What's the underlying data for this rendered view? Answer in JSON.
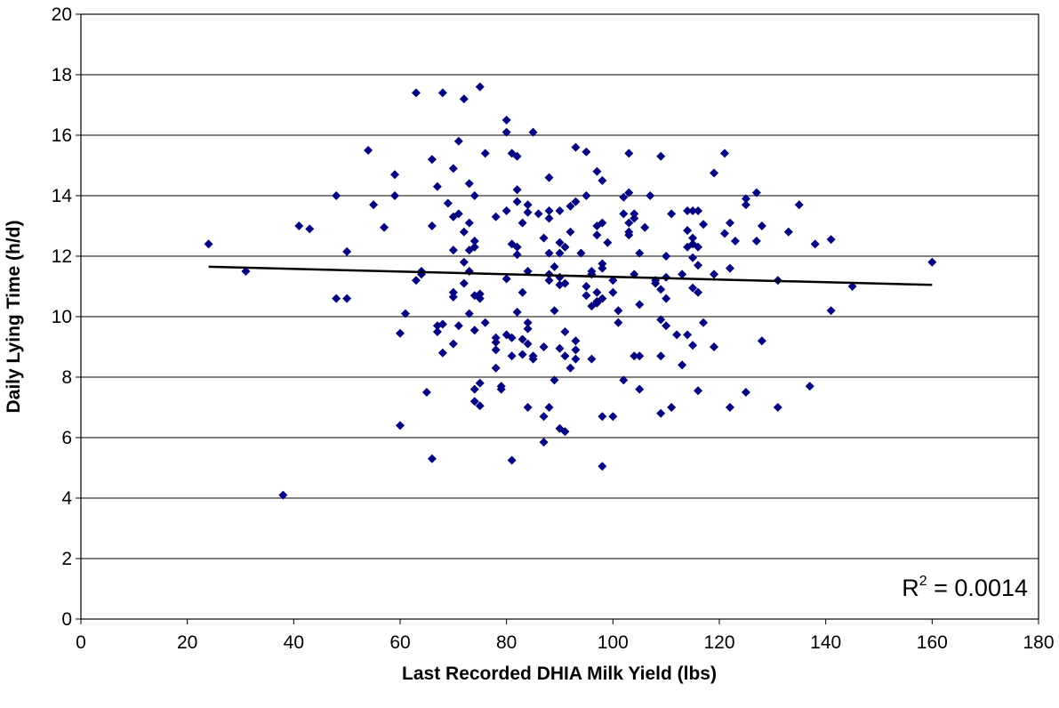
{
  "chart_data": {
    "type": "scatter",
    "title": "",
    "xlabel": "Last Recorded DHIA Milk Yield (lbs)",
    "ylabel": "Daily Lying Time (h/d)",
    "xlim": [
      0,
      180
    ],
    "ylim": [
      0,
      20
    ],
    "x_ticks": [
      0,
      20,
      40,
      60,
      80,
      100,
      120,
      140,
      160,
      180
    ],
    "y_ticks": [
      0,
      2,
      4,
      6,
      8,
      10,
      12,
      14,
      16,
      18,
      20
    ],
    "grid": "horizontal",
    "legend": "none",
    "r_squared_label": "R",
    "r_squared_exp": "2",
    "r_squared_value": " = 0.0014",
    "point_color": "#000080",
    "trendline": {
      "x": [
        24,
        160
      ],
      "y": [
        11.65,
        11.05
      ]
    },
    "points": [
      [
        24,
        12.4
      ],
      [
        31,
        11.5
      ],
      [
        38,
        4.1
      ],
      [
        41,
        13.0
      ],
      [
        43,
        12.9
      ],
      [
        48,
        14.0
      ],
      [
        48,
        10.6
      ],
      [
        50,
        10.6
      ],
      [
        50,
        12.15
      ],
      [
        54,
        15.5
      ],
      [
        55,
        13.7
      ],
      [
        57,
        12.95
      ],
      [
        59,
        14.7
      ],
      [
        59,
        14.0
      ],
      [
        60,
        9.45
      ],
      [
        60,
        6.4
      ],
      [
        61,
        10.1
      ],
      [
        63,
        17.4
      ],
      [
        63,
        11.2
      ],
      [
        64,
        11.5
      ],
      [
        64,
        11.4
      ],
      [
        65,
        7.5
      ],
      [
        66,
        5.3
      ],
      [
        66,
        13.0
      ],
      [
        66,
        15.2
      ],
      [
        67,
        9.7
      ],
      [
        67,
        9.5
      ],
      [
        67,
        14.3
      ],
      [
        68,
        9.75
      ],
      [
        68,
        8.8
      ],
      [
        68,
        17.4
      ],
      [
        69,
        13.75
      ],
      [
        70,
        14.9
      ],
      [
        70,
        13.3
      ],
      [
        70,
        12.2
      ],
      [
        70,
        10.8
      ],
      [
        70,
        10.65
      ],
      [
        70,
        9.1
      ],
      [
        71,
        15.8
      ],
      [
        71,
        13.4
      ],
      [
        71,
        9.7
      ],
      [
        72,
        17.2
      ],
      [
        72,
        12.8
      ],
      [
        72,
        11.8
      ],
      [
        72,
        11.1
      ],
      [
        73,
        14.4
      ],
      [
        73,
        13.1
      ],
      [
        73,
        12.2
      ],
      [
        73,
        11.5
      ],
      [
        73,
        10.1
      ],
      [
        74,
        14.0
      ],
      [
        74,
        12.5
      ],
      [
        74,
        12.3
      ],
      [
        74,
        10.7
      ],
      [
        74,
        9.55
      ],
      [
        74,
        7.2
      ],
      [
        74,
        7.6
      ],
      [
        75,
        17.6
      ],
      [
        75,
        10.75
      ],
      [
        75,
        10.6
      ],
      [
        75,
        7.8
      ],
      [
        75,
        7.05
      ],
      [
        76,
        15.4
      ],
      [
        76,
        9.8
      ],
      [
        78,
        13.3
      ],
      [
        78,
        9.3
      ],
      [
        78,
        9.15
      ],
      [
        78,
        8.9
      ],
      [
        78,
        8.3
      ],
      [
        79,
        7.7
      ],
      [
        79,
        7.6
      ],
      [
        80,
        16.5
      ],
      [
        80,
        16.1
      ],
      [
        80,
        13.5
      ],
      [
        80,
        11.25
      ],
      [
        80,
        9.4
      ],
      [
        81,
        15.4
      ],
      [
        81,
        12.4
      ],
      [
        81,
        9.3
      ],
      [
        81,
        8.7
      ],
      [
        81,
        5.25
      ],
      [
        82,
        15.3
      ],
      [
        82,
        14.2
      ],
      [
        82,
        13.8
      ],
      [
        82,
        12.3
      ],
      [
        82,
        12.05
      ],
      [
        82,
        10.15
      ],
      [
        83,
        13.1
      ],
      [
        83,
        10.8
      ],
      [
        83,
        9.25
      ],
      [
        83,
        8.75
      ],
      [
        84,
        13.7
      ],
      [
        84,
        13.45
      ],
      [
        84,
        11.5
      ],
      [
        84,
        9.8
      ],
      [
        84,
        9.6
      ],
      [
        84,
        9.1
      ],
      [
        84,
        7.0
      ],
      [
        85,
        16.1
      ],
      [
        85,
        8.7
      ],
      [
        85,
        8.6
      ],
      [
        86,
        13.4
      ],
      [
        87,
        12.6
      ],
      [
        87,
        9.0
      ],
      [
        87,
        6.7
      ],
      [
        87,
        5.85
      ],
      [
        88,
        14.6
      ],
      [
        88,
        13.5
      ],
      [
        88,
        13.25
      ],
      [
        88,
        12.1
      ],
      [
        88,
        11.4
      ],
      [
        88,
        11.2
      ],
      [
        88,
        7.0
      ],
      [
        89,
        11.65
      ],
      [
        89,
        10.2
      ],
      [
        89,
        7.9
      ],
      [
        90,
        13.5
      ],
      [
        90,
        12.45
      ],
      [
        90,
        12.1
      ],
      [
        90,
        11.3
      ],
      [
        90,
        11.05
      ],
      [
        90,
        8.95
      ],
      [
        90,
        6.3
      ],
      [
        91,
        12.3
      ],
      [
        91,
        11.1
      ],
      [
        91,
        9.5
      ],
      [
        91,
        8.7
      ],
      [
        91,
        6.2
      ],
      [
        92,
        13.65
      ],
      [
        92,
        12.8
      ],
      [
        92,
        8.3
      ],
      [
        93,
        15.6
      ],
      [
        93,
        13.8
      ],
      [
        93,
        9.2
      ],
      [
        93,
        8.9
      ],
      [
        93,
        8.6
      ],
      [
        94,
        12.1
      ],
      [
        95,
        15.45
      ],
      [
        95,
        14.0
      ],
      [
        95,
        11.0
      ],
      [
        95,
        10.7
      ],
      [
        96,
        11.5
      ],
      [
        96,
        11.4
      ],
      [
        96,
        10.35
      ],
      [
        96,
        8.6
      ],
      [
        97,
        14.8
      ],
      [
        97,
        13.0
      ],
      [
        97,
        12.7
      ],
      [
        97,
        10.8
      ],
      [
        97,
        10.5
      ],
      [
        97,
        10.45
      ],
      [
        98,
        14.5
      ],
      [
        98,
        13.1
      ],
      [
        98,
        11.75
      ],
      [
        98,
        11.6
      ],
      [
        98,
        10.6
      ],
      [
        98,
        6.7
      ],
      [
        98,
        5.05
      ],
      [
        99,
        12.45
      ],
      [
        100,
        11.2
      ],
      [
        100,
        10.8
      ],
      [
        100,
        6.7
      ],
      [
        101,
        10.2
      ],
      [
        101,
        9.8
      ],
      [
        102,
        13.95
      ],
      [
        102,
        13.4
      ],
      [
        102,
        7.9
      ],
      [
        103,
        15.4
      ],
      [
        103,
        14.1
      ],
      [
        103,
        13.1
      ],
      [
        103,
        12.8
      ],
      [
        103,
        12.7
      ],
      [
        104,
        13.4
      ],
      [
        104,
        13.25
      ],
      [
        104,
        11.4
      ],
      [
        104,
        8.7
      ],
      [
        105,
        12.1
      ],
      [
        105,
        10.4
      ],
      [
        105,
        8.7
      ],
      [
        105,
        7.6
      ],
      [
        106,
        12.95
      ],
      [
        107,
        14.0
      ],
      [
        108,
        11.2
      ],
      [
        108,
        11.1
      ],
      [
        109,
        15.3
      ],
      [
        109,
        10.9
      ],
      [
        109,
        9.9
      ],
      [
        109,
        8.7
      ],
      [
        109,
        6.8
      ],
      [
        110,
        12.0
      ],
      [
        110,
        11.3
      ],
      [
        110,
        10.6
      ],
      [
        110,
        9.7
      ],
      [
        111,
        13.4
      ],
      [
        111,
        7.0
      ],
      [
        112,
        9.4
      ],
      [
        113,
        11.4
      ],
      [
        113,
        8.4
      ],
      [
        114,
        13.5
      ],
      [
        114,
        12.85
      ],
      [
        114,
        12.3
      ],
      [
        114,
        9.4
      ],
      [
        115,
        13.5
      ],
      [
        115,
        12.6
      ],
      [
        115,
        12.4
      ],
      [
        115,
        11.95
      ],
      [
        115,
        10.95
      ],
      [
        115,
        9.05
      ],
      [
        116,
        13.5
      ],
      [
        116,
        12.3
      ],
      [
        116,
        11.7
      ],
      [
        116,
        10.8
      ],
      [
        116,
        7.55
      ],
      [
        117,
        13.05
      ],
      [
        117,
        9.8
      ],
      [
        119,
        14.75
      ],
      [
        119,
        11.4
      ],
      [
        119,
        9.0
      ],
      [
        121,
        15.4
      ],
      [
        121,
        12.75
      ],
      [
        122,
        13.1
      ],
      [
        122,
        11.6
      ],
      [
        122,
        7.0
      ],
      [
        123,
        12.5
      ],
      [
        125,
        13.9
      ],
      [
        125,
        13.7
      ],
      [
        125,
        7.5
      ],
      [
        127,
        14.1
      ],
      [
        127,
        12.5
      ],
      [
        128,
        13.0
      ],
      [
        128,
        9.2
      ],
      [
        131,
        11.2
      ],
      [
        131,
        7.0
      ],
      [
        133,
        12.8
      ],
      [
        135,
        13.7
      ],
      [
        137,
        7.7
      ],
      [
        138,
        12.4
      ],
      [
        141,
        12.55
      ],
      [
        141,
        10.2
      ],
      [
        145,
        11.0
      ],
      [
        160,
        11.8
      ]
    ]
  }
}
